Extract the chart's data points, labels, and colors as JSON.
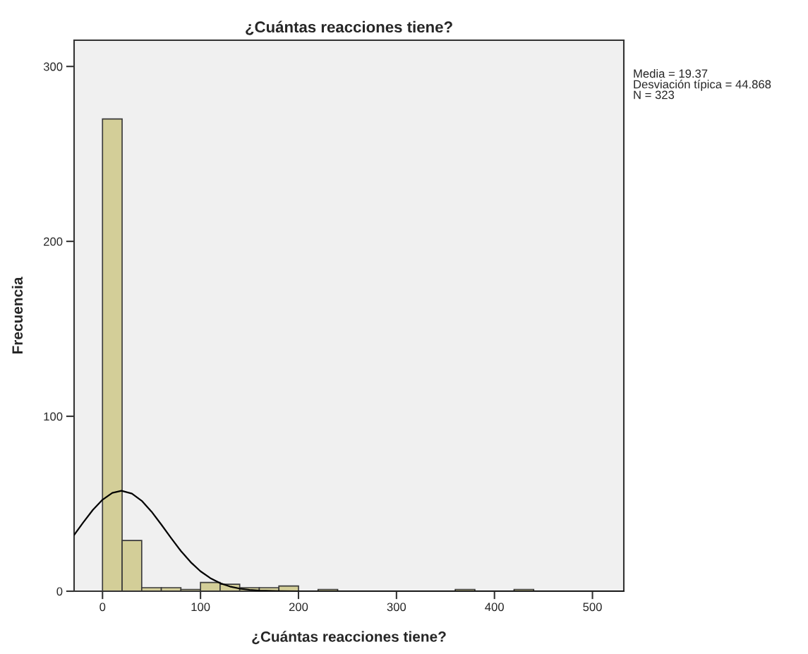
{
  "chart_data": {
    "type": "histogram",
    "title": "¿Cuántas reacciones tiene?",
    "xlabel": "¿Cuántas reacciones tiene?",
    "ylabel": "Frecuencia",
    "series": [
      {
        "color": "#d3ce98",
        "bins": [
          0,
          20,
          40,
          60,
          80,
          100,
          120,
          140,
          160,
          180,
          200,
          220,
          240,
          260,
          280,
          300,
          320,
          340,
          360,
          380,
          400,
          420,
          440,
          460,
          480,
          500
        ],
        "values": [
          270,
          29,
          2,
          2,
          1,
          5,
          4,
          2,
          2,
          3,
          0,
          1,
          0,
          0,
          0,
          0,
          0,
          0,
          1,
          0,
          0,
          1,
          0,
          0,
          0
        ]
      },
      {
        "type": "line",
        "color": "#000000",
        "x": [
          -29,
          -20,
          -10,
          0,
          10,
          19.37,
          30,
          40,
          50,
          60,
          70,
          80,
          90,
          100,
          110,
          120,
          130,
          140,
          150,
          160,
          180,
          200,
          300,
          400,
          532
        ],
        "values": [
          32.1,
          39.1,
          46.4,
          52.3,
          56.2,
          57.4,
          55.8,
          51.7,
          45.5,
          38.1,
          30.4,
          23.0,
          16.6,
          11.4,
          7.5,
          4.6,
          2.7,
          1.5,
          0.8,
          0.4,
          0.1,
          0,
          0,
          0,
          0
        ]
      }
    ],
    "xlim": [
      -29,
      532
    ],
    "ylim": [
      0,
      315
    ],
    "xticks": [
      0,
      100,
      200,
      300,
      400,
      500
    ],
    "yticks": [
      0,
      100,
      200,
      300
    ],
    "grid": false,
    "legend": false,
    "annotations": [
      "Media = 19.37",
      "Desviación típica = 44.868",
      "N = 323"
    ]
  }
}
